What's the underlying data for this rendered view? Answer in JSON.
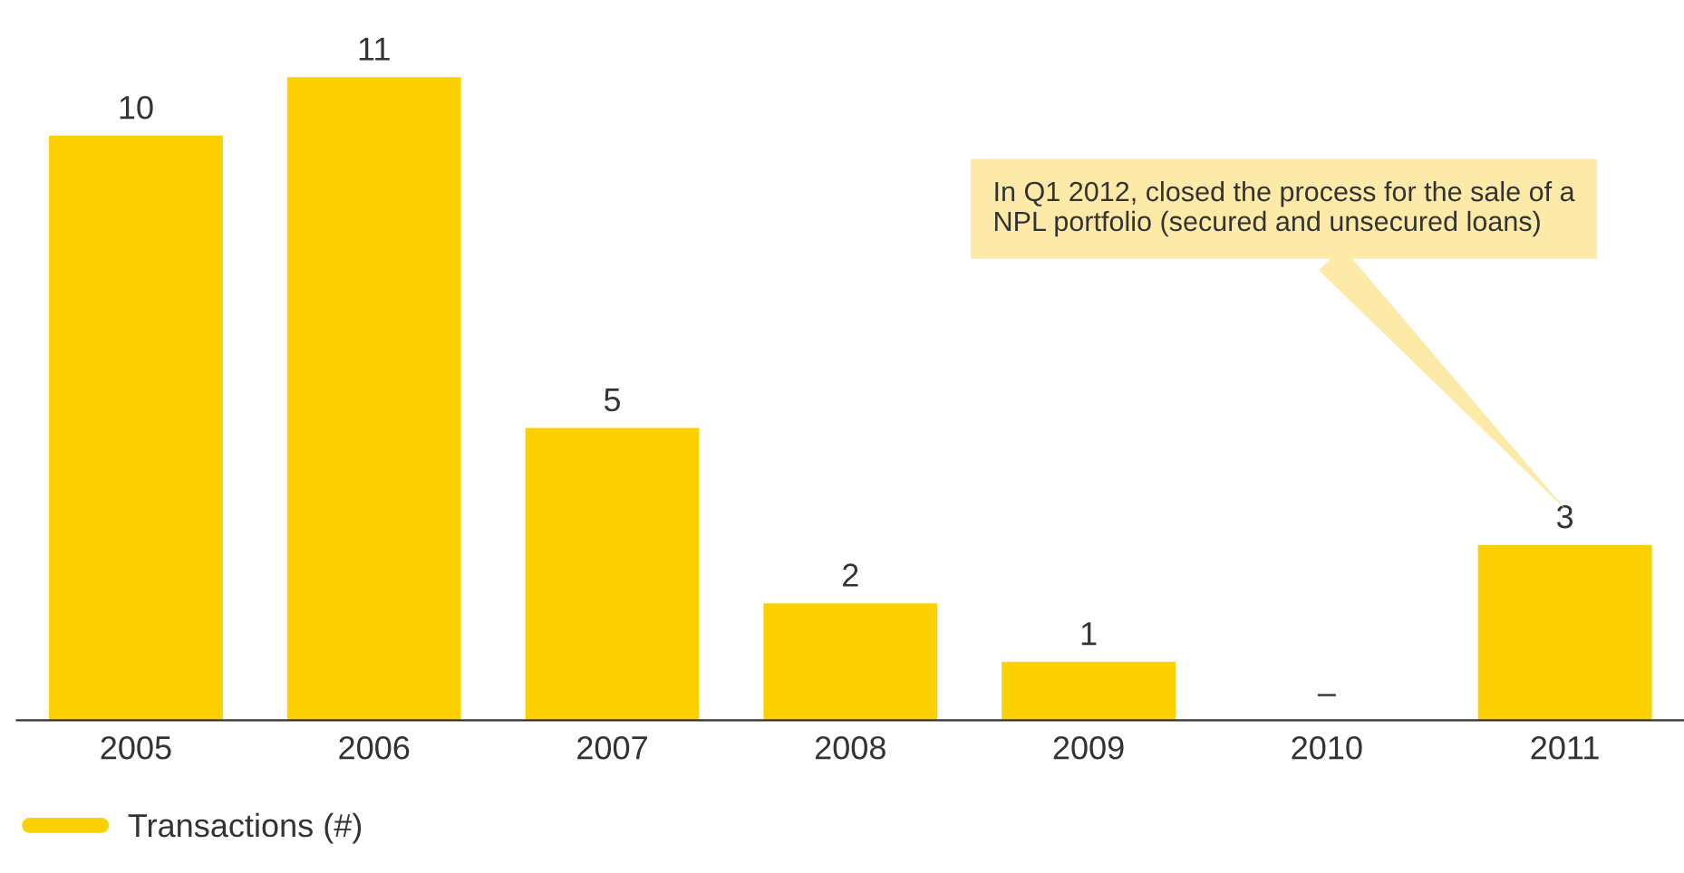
{
  "chart_data": {
    "type": "bar",
    "categories": [
      "2005",
      "2006",
      "2007",
      "2008",
      "2009",
      "2010",
      "2011"
    ],
    "series": [
      {
        "name": "Transactions (#)",
        "color": "#fdd000",
        "values": [
          10,
          11,
          5,
          2,
          1,
          0,
          3
        ],
        "value_labels": [
          "10",
          "11",
          "5",
          "2",
          "1",
          "–",
          "3"
        ]
      }
    ],
    "annotations": [
      "In Q1 2012, closed the process for the sale of a\nNPL portfolio (secured and unsecured loans)"
    ],
    "legend": "bottom left",
    "grid": false
  }
}
